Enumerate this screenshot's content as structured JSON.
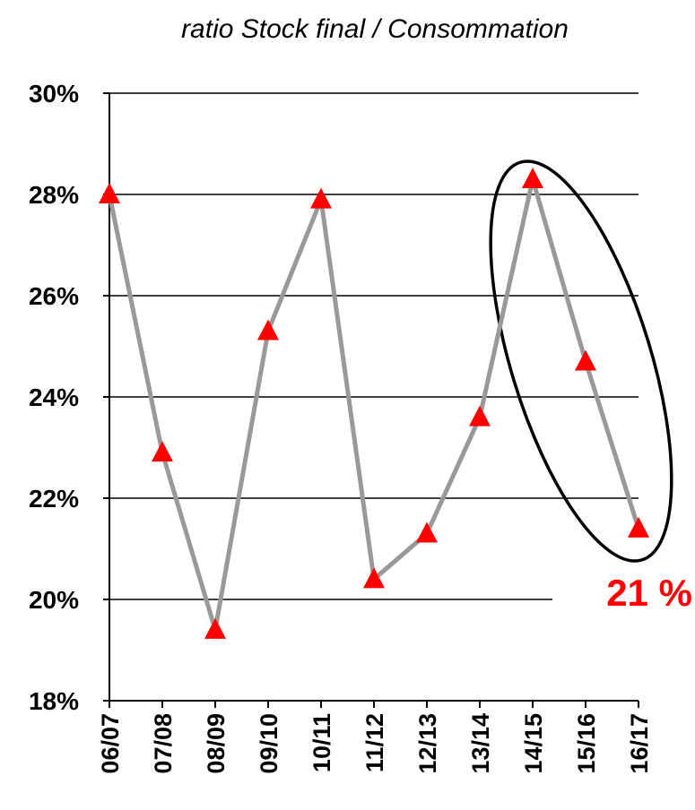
{
  "chart_data": {
    "type": "line",
    "title": "ratio Stock final / Consommation",
    "xlabel": "",
    "ylabel": "",
    "categories": [
      "06/07",
      "07/08",
      "08/09",
      "09/10",
      "10/11",
      "11/12",
      "12/13",
      "13/14",
      "14/15",
      "15/16",
      "16/17"
    ],
    "series": [
      {
        "values": [
          28.0,
          22.9,
          19.4,
          25.3,
          27.9,
          20.4,
          21.3,
          23.6,
          28.3,
          24.7,
          21.4
        ]
      }
    ],
    "ylim": [
      18,
      30
    ],
    "yticks": [
      "30%",
      "28%",
      "26%",
      "24%",
      "22%",
      "20%",
      "18%"
    ],
    "ytick_values": [
      30,
      28,
      26,
      24,
      22,
      20,
      18
    ],
    "grid": true,
    "annotation": {
      "text": "21 %",
      "highlight": [
        "14/15",
        "15/16",
        "16/17"
      ]
    },
    "colors": {
      "line": "#999999",
      "marker": "#ff0000",
      "annotation": "#ff0000",
      "grid": "#000000",
      "ellipse": "#000000"
    }
  }
}
